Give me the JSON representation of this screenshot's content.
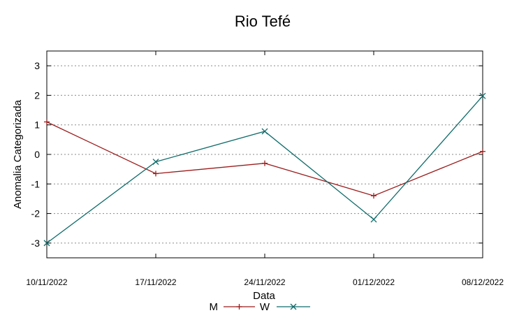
{
  "chart_data": {
    "type": "line",
    "title": "Rio Tefé",
    "xlabel": "Data",
    "ylabel": "Anomalia Categorizada",
    "categories": [
      "10/11/2022",
      "17/11/2022",
      "24/11/2022",
      "01/12/2022",
      "08/12/2022"
    ],
    "yticks": [
      3,
      2,
      1,
      0,
      -1,
      -2,
      -3
    ],
    "ylim": [
      -3.5,
      3.5
    ],
    "grid": true,
    "legend_position": "bottom-center",
    "series": [
      {
        "name": "M",
        "values": [
          1.1,
          -0.65,
          -0.3,
          -1.4,
          0.1
        ],
        "color": "#9b1c1c",
        "marker": "plus"
      },
      {
        "name": "W",
        "values": [
          -3.0,
          -0.25,
          0.78,
          -2.2,
          1.98
        ],
        "color": "#0f6b6b",
        "marker": "cross"
      }
    ]
  }
}
